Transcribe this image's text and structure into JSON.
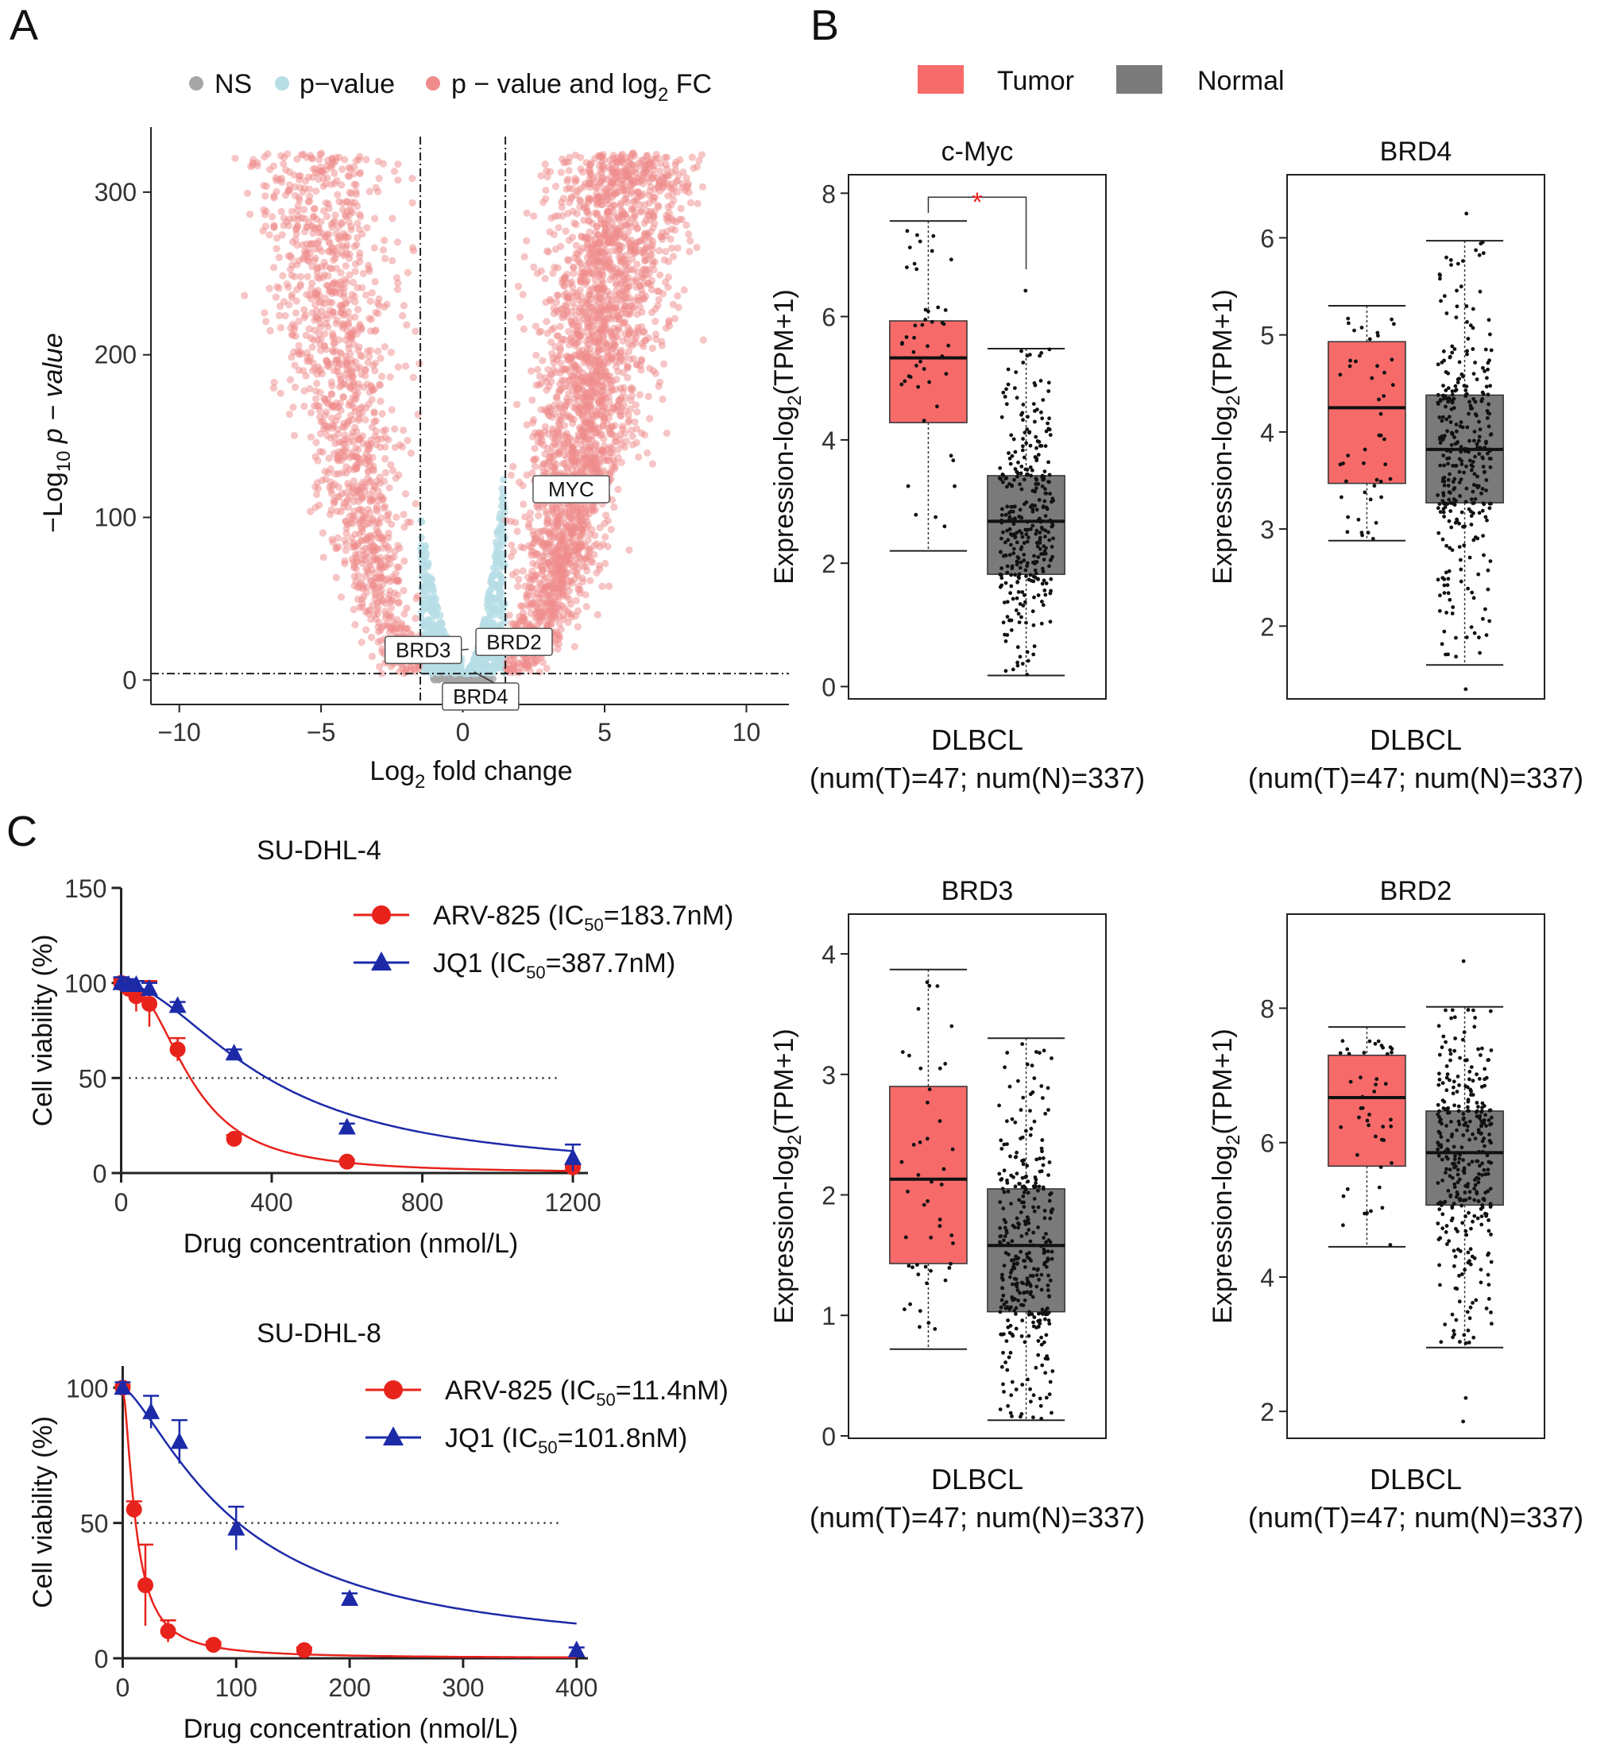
{
  "panels": {
    "a": "A",
    "b": "B",
    "c": "C"
  },
  "colors": {
    "ns": "#a6a6a6",
    "pvalue": "#b7dde6",
    "both": "#ef8b8b",
    "tumor": "#f76a6a",
    "normal": "#7a7a7a",
    "arv": "#e8231c",
    "jq1": "#1c2aa8",
    "sig_star": "#e8231c"
  },
  "chart_data": [
    {
      "id": "volcano",
      "type": "scatter",
      "title": "",
      "legend": {
        "position": "top",
        "entries": [
          {
            "label": "NS",
            "color_key": "ns"
          },
          {
            "label": "p−value",
            "color_key": "pvalue"
          },
          {
            "label_main": "p − value and log",
            "label_sub": "2",
            "label_end": " FC",
            "color_key": "both"
          }
        ]
      },
      "xlabel": {
        "main": "Log",
        "sub": "2",
        "end": " fold change"
      },
      "ylabel": {
        "pre": "−Log",
        "sub": "10",
        "italic": " p − value"
      },
      "xlim": [
        -11,
        11.5
      ],
      "ylim": [
        -15,
        340
      ],
      "xticks": [
        -10,
        -5,
        0,
        5,
        10
      ],
      "xtick_labels": [
        "−10",
        "−5",
        "0",
        "5",
        "10"
      ],
      "yticks": [
        0,
        100,
        200,
        300
      ],
      "ytick_labels": [
        "0",
        "100",
        "200",
        "300"
      ],
      "thresholds": {
        "log2fc": [
          -1.5,
          1.5
        ],
        "neglog10p": 4
      },
      "labeled_genes": [
        {
          "gene": "MYC",
          "x": 2.7,
          "y": 110
        },
        {
          "gene": "BRD2",
          "x": 0.6,
          "y": 21
        },
        {
          "gene": "BRD3",
          "x": 0.2,
          "y": 19
        },
        {
          "gene": "BRD4",
          "x": 0.4,
          "y": 5
        }
      ],
      "points_note": "~5,000 genes; up-regulated arm spans log2FC 1.5–8 up to ≈325; down-regulated arm spans −8 to −1.5"
    },
    {
      "id": "box-cmyc",
      "type": "box",
      "title": "c-Myc",
      "ylabel": {
        "main": "Expression-log",
        "sub": "2",
        "end": "(TPM+1)"
      },
      "ylim": [
        -0.2,
        8.3
      ],
      "yticks": [
        0,
        2,
        4,
        6,
        8
      ],
      "categories": [
        "DLBCL"
      ],
      "xlabel_line2": "(num(T)=47; num(N)=337)",
      "series": [
        {
          "name": "Tumor",
          "n": 47,
          "min": 2.2,
          "q1": 4.28,
          "median": 5.33,
          "q3": 5.93,
          "max": 7.55
        },
        {
          "name": "Normal",
          "n": 337,
          "min": 0.18,
          "q1": 1.82,
          "median": 2.68,
          "q3": 3.42,
          "max": 5.48,
          "outliers": [
            6.42
          ]
        }
      ],
      "significance": "*"
    },
    {
      "id": "box-brd4",
      "type": "box",
      "title": "BRD4",
      "ylabel": {
        "main": "Expression-log",
        "sub": "2",
        "end": "(TPM+1)"
      },
      "ylim": [
        1.25,
        6.65
      ],
      "yticks": [
        2,
        3,
        4,
        5,
        6
      ],
      "categories": [
        "DLBCL"
      ],
      "xlabel_line2": "(num(T)=47; num(N)=337)",
      "series": [
        {
          "name": "Tumor",
          "n": 47,
          "min": 2.88,
          "q1": 3.47,
          "median": 4.25,
          "q3": 4.93,
          "max": 5.3
        },
        {
          "name": "Normal",
          "n": 337,
          "min": 1.6,
          "q1": 3.27,
          "median": 3.82,
          "q3": 4.38,
          "max": 5.97,
          "outliers": [
            1.35,
            6.25
          ]
        }
      ]
    },
    {
      "id": "box-brd3",
      "type": "box",
      "title": "BRD3",
      "ylabel": {
        "main": "Expression-log",
        "sub": "2",
        "end": "(TPM+1)"
      },
      "ylim": [
        -0.02,
        4.33
      ],
      "yticks": [
        0,
        1,
        2,
        3,
        4
      ],
      "categories": [
        "DLBCL"
      ],
      "xlabel_line2": "(num(T)=47; num(N)=337)",
      "series": [
        {
          "name": "Tumor",
          "n": 47,
          "min": 0.72,
          "q1": 1.43,
          "median": 2.13,
          "q3": 2.9,
          "max": 3.87
        },
        {
          "name": "Normal",
          "n": 337,
          "min": 0.13,
          "q1": 1.03,
          "median": 1.58,
          "q3": 2.05,
          "max": 3.3
        }
      ]
    },
    {
      "id": "box-brd2",
      "type": "box",
      "title": "BRD2",
      "ylabel": {
        "main": "Expression-log",
        "sub": "2",
        "end": "(TPM+1)"
      },
      "ylim": [
        1.6,
        9.4
      ],
      "yticks": [
        2,
        4,
        6,
        8
      ],
      "categories": [
        "DLBCL"
      ],
      "xlabel_line2": "(num(T)=47; num(N)=337)",
      "series": [
        {
          "name": "Tumor",
          "n": 47,
          "min": 4.45,
          "q1": 5.65,
          "median": 6.67,
          "q3": 7.3,
          "max": 7.72
        },
        {
          "name": "Normal",
          "n": 337,
          "min": 2.95,
          "q1": 5.07,
          "median": 5.85,
          "q3": 6.47,
          "max": 8.02,
          "outliers": [
            2.2,
            1.85,
            8.7
          ]
        }
      ]
    },
    {
      "id": "dose-sudhl4",
      "type": "line",
      "title": "SU-DHL-4",
      "xlabel": "Drug concentration (nmol/L)",
      "ylabel": "Cell viability (%)",
      "xlim": [
        -20,
        1240
      ],
      "ylim": [
        0,
        150
      ],
      "xticks": [
        0,
        400,
        800,
        1200
      ],
      "yticks": [
        0,
        50,
        100,
        150
      ],
      "reference_line": 50,
      "series": [
        {
          "name": "ARV-825",
          "ic50_label": "183.7nM",
          "ic50": 183.7,
          "hill": 2.4,
          "marker": "circle",
          "color_key": "arv",
          "x": [
            0,
            20,
            40,
            75,
            150,
            300,
            600,
            1200
          ],
          "y": [
            100,
            97,
            93,
            89,
            65,
            18,
            6,
            3
          ],
          "err": [
            2,
            4,
            8,
            12,
            6,
            2,
            1,
            1
          ]
        },
        {
          "name": "JQ1",
          "ic50_label": "387.7nM",
          "ic50": 387.7,
          "hill": 1.8,
          "marker": "triangle",
          "color_key": "jq1",
          "x": [
            0,
            20,
            40,
            75,
            150,
            300,
            600,
            1200
          ],
          "y": [
            100,
            99,
            99,
            97,
            88,
            63,
            24,
            8
          ],
          "err": [
            3,
            3,
            2,
            3,
            2,
            2,
            2,
            7
          ]
        }
      ]
    },
    {
      "id": "dose-sudhl8",
      "type": "line",
      "title": "SU-DHL-8",
      "xlabel": "Drug concentration (nmol/L)",
      "ylabel": "Cell viability (%)",
      "xlim": [
        -8,
        410
      ],
      "ylim": [
        0,
        108
      ],
      "xticks": [
        0,
        100,
        200,
        300,
        400
      ],
      "yticks": [
        0,
        50,
        100
      ],
      "reference_line": 50,
      "series": [
        {
          "name": "ARV-825",
          "ic50_label": "11.4nM",
          "ic50": 11.4,
          "hill": 1.6,
          "marker": "circle",
          "color_key": "arv",
          "x": [
            0,
            10,
            20,
            40,
            80,
            160
          ],
          "y": [
            100,
            55,
            27,
            10,
            5,
            3
          ],
          "err": [
            1,
            3,
            15,
            4,
            1,
            1
          ]
        },
        {
          "name": "JQ1",
          "ic50_label": "101.8nM",
          "ic50": 101.8,
          "hill": 1.4,
          "marker": "triangle",
          "color_key": "jq1",
          "x": [
            0,
            25,
            50,
            100,
            200,
            400
          ],
          "y": [
            100,
            91,
            80,
            48,
            22,
            3
          ],
          "err": [
            2,
            6,
            8,
            8,
            2,
            1
          ]
        }
      ]
    }
  ]
}
